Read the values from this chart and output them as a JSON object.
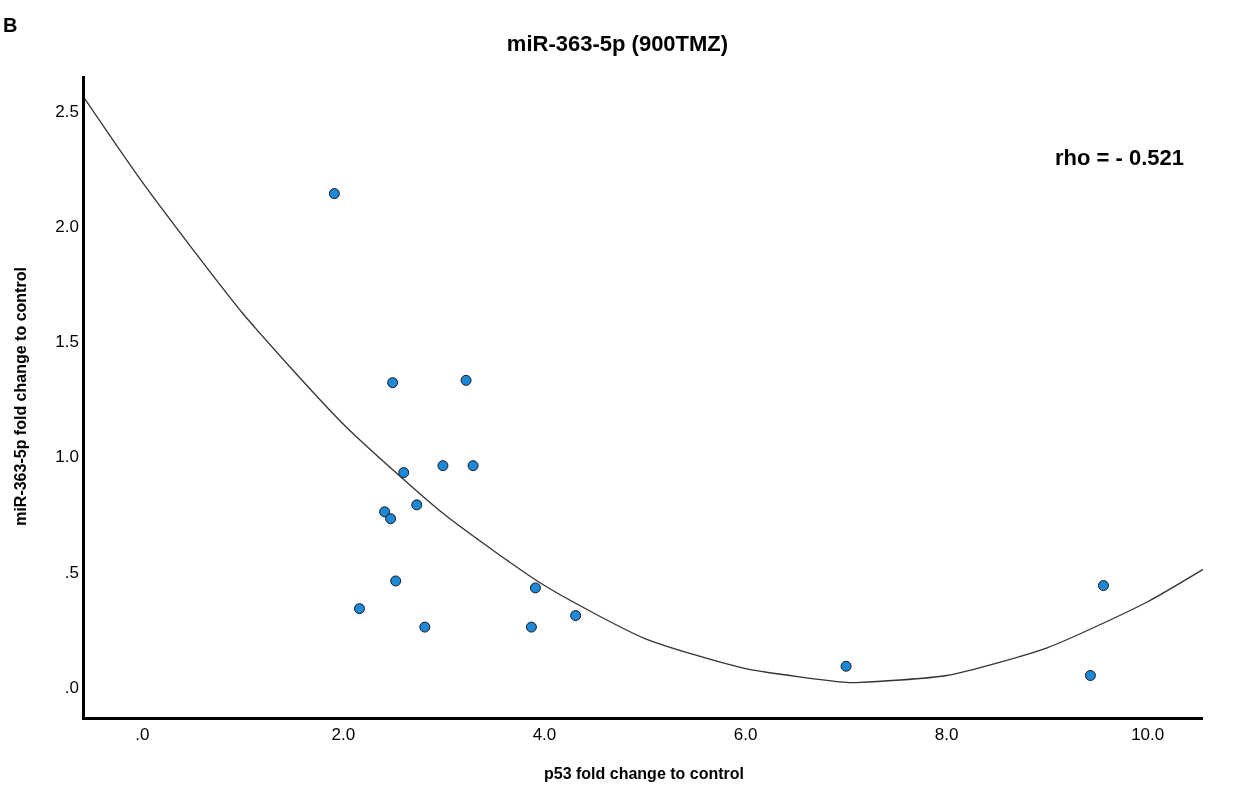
{
  "chart_data": {
    "type": "scatter",
    "title": "miR-363-5p (900TMZ)",
    "xlabel": "p53 fold change to control",
    "ylabel": "miR-363-5p fold change to control",
    "annotations": [
      "B",
      "rho = - 0.521"
    ],
    "marker": "circle",
    "grid": false,
    "xlim": [
      -0.57,
      10.55
    ],
    "ylim": [
      -0.13,
      2.65
    ],
    "xticks": [
      {
        "value": 0,
        "label": ".0"
      },
      {
        "value": 2,
        "label": "2.0"
      },
      {
        "value": 4,
        "label": "4.0"
      },
      {
        "value": 6,
        "label": "6.0"
      },
      {
        "value": 8,
        "label": "8.0"
      },
      {
        "value": 10,
        "label": "10.0"
      }
    ],
    "yticks": [
      {
        "value": 0,
        "label": ".0"
      },
      {
        "value": 0.5,
        "label": ".5"
      },
      {
        "value": 1,
        "label": "1.0"
      },
      {
        "value": 1.5,
        "label": "1.5"
      },
      {
        "value": 2,
        "label": "2.0"
      },
      {
        "value": 2.5,
        "label": "2.5"
      }
    ],
    "series": [
      {
        "color": "#1e88d8",
        "x": [
          1.91,
          2.16,
          2.41,
          2.47,
          2.49,
          2.52,
          2.6,
          2.73,
          2.81,
          2.99,
          3.22,
          3.29,
          3.87,
          3.91,
          4.31,
          7.0,
          9.43,
          9.56
        ],
        "values": [
          2.14,
          0.34,
          0.76,
          0.73,
          1.32,
          0.46,
          0.93,
          0.79,
          0.26,
          0.96,
          1.33,
          0.96,
          0.26,
          0.43,
          0.31,
          0.09,
          0.05,
          0.44
        ]
      },
      {
        "type": "line",
        "color": "#333333",
        "marker": "none",
        "x": [
          -0.57,
          0,
          1,
          2,
          3,
          4,
          5,
          6,
          7,
          7.14,
          8,
          9,
          10,
          10.55
        ],
        "values": [
          2.55,
          2.19,
          1.62,
          1.14,
          0.75,
          0.44,
          0.21,
          0.08,
          0.02,
          0.02,
          0.05,
          0.17,
          0.37,
          0.51
        ]
      }
    ]
  }
}
